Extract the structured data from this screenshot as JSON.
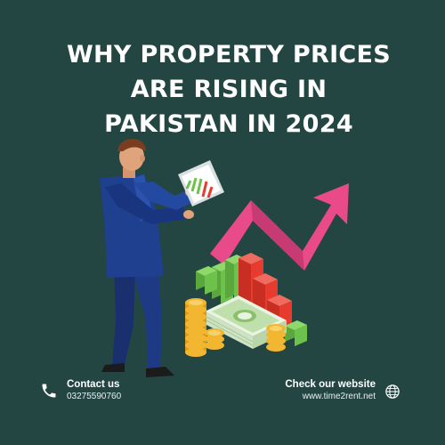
{
  "title": {
    "line1": "WHY PROPERTY PRICES",
    "line2": "ARE RISING IN",
    "line3": "PAKISTAN IN 2024"
  },
  "contact": {
    "heading": "Contact us",
    "phone": "03275590760",
    "icon": "phone-icon"
  },
  "website": {
    "heading": "Check our website",
    "url": "www.time2rent.net",
    "icon": "globe-icon"
  },
  "colors": {
    "background": "#244643",
    "text": "#ffffff",
    "arrow": "#e94b8a",
    "bar_green": "#6cc24a",
    "bar_red": "#e63b2e",
    "suit": "#1f3f8f",
    "coin": "#f2b630",
    "money": "#d9ecd0"
  }
}
